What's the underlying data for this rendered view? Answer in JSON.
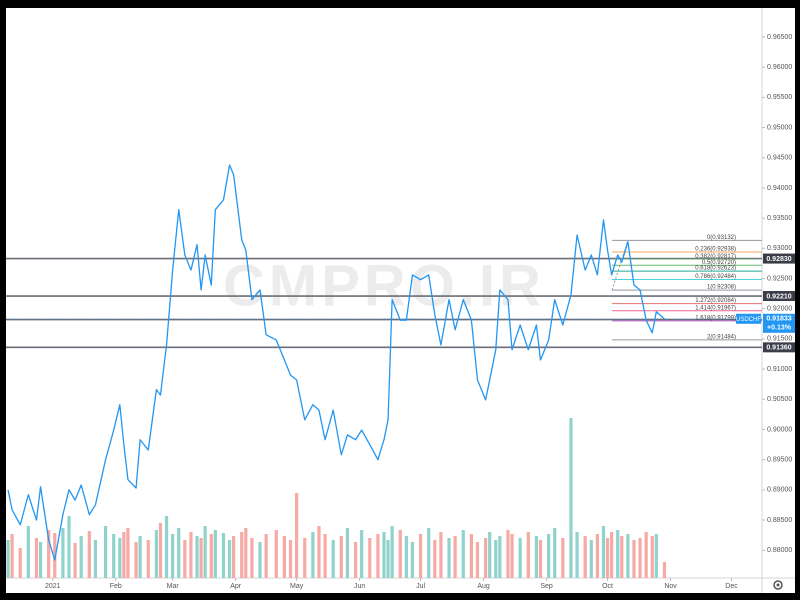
{
  "chart_data": {
    "type": "line",
    "watermark": "CMPRO.IR",
    "x": [
      -22,
      -20,
      -16,
      -12,
      -8,
      -6,
      -2,
      1,
      5,
      8,
      11,
      14,
      18,
      21,
      26,
      30,
      33,
      35,
      37,
      41,
      43,
      47,
      51,
      53,
      56,
      59,
      62,
      65,
      68,
      71,
      73,
      75,
      78,
      80,
      84,
      87,
      89,
      93,
      95,
      98,
      102,
      105,
      110,
      114,
      117,
      120,
      124,
      128,
      131,
      134,
      138,
      142,
      145,
      149,
      152,
      156,
      160,
      163,
      165,
      167,
      171,
      174,
      177,
      181,
      185,
      188,
      191,
      195,
      198,
      202,
      206,
      209,
      213,
      215,
      218,
      220,
      224,
      226,
      230,
      234,
      238,
      240,
      244,
      247,
      251,
      255,
      258,
      262,
      265,
      268,
      271,
      273,
      275,
      278,
      280,
      283,
      286,
      289,
      292,
      295,
      297,
      301
    ],
    "xlim": [
      -23,
      349
    ],
    "xticks": [
      {
        "value": 0,
        "label": "2021"
      },
      {
        "value": 31,
        "label": "Feb"
      },
      {
        "value": 59,
        "label": "Mar"
      },
      {
        "value": 90,
        "label": "Apr"
      },
      {
        "value": 120,
        "label": "May"
      },
      {
        "value": 151,
        "label": "Jun"
      },
      {
        "value": 181,
        "label": "Jul"
      },
      {
        "value": 212,
        "label": "Aug"
      },
      {
        "value": 243,
        "label": "Sep"
      },
      {
        "value": 273,
        "label": "Oct"
      },
      {
        "value": 304,
        "label": "Nov"
      },
      {
        "value": 334,
        "label": "Dec"
      }
    ],
    "ylim": [
      0.8754,
      0.9698
    ],
    "yticks": [
      {
        "value": 0.88,
        "label": "0.88000"
      },
      {
        "value": 0.885,
        "label": "0.88500"
      },
      {
        "value": 0.89,
        "label": "0.89000"
      },
      {
        "value": 0.895,
        "label": "0.89500"
      },
      {
        "value": 0.9,
        "label": "0.90000"
      },
      {
        "value": 0.905,
        "label": "0.90500"
      },
      {
        "value": 0.91,
        "label": "0.91000"
      },
      {
        "value": 0.915,
        "label": "0.91500"
      },
      {
        "value": 0.92,
        "label": "0.92000"
      },
      {
        "value": 0.925,
        "label": "0.92500"
      },
      {
        "value": 0.93,
        "label": "0.93000"
      },
      {
        "value": 0.935,
        "label": "0.93500"
      },
      {
        "value": 0.94,
        "label": "0.94000"
      },
      {
        "value": 0.945,
        "label": "0.94500"
      },
      {
        "value": 0.95,
        "label": "0.95000"
      },
      {
        "value": 0.955,
        "label": "0.95500"
      },
      {
        "value": 0.96,
        "label": "0.96000"
      },
      {
        "value": 0.965,
        "label": "0.96500"
      }
    ],
    "grid": false,
    "series": [
      {
        "name": "USDCHF",
        "color": "#2196f3",
        "values": [
          0.89,
          0.8867,
          0.8842,
          0.8892,
          0.885,
          0.8905,
          0.8817,
          0.8784,
          0.8859,
          0.89,
          0.8883,
          0.8908,
          0.8859,
          0.8875,
          0.895,
          0.8999,
          0.9041,
          0.8975,
          0.8917,
          0.8903,
          0.8983,
          0.8966,
          0.9066,
          0.9057,
          0.914,
          0.9264,
          0.9364,
          0.9289,
          0.9264,
          0.9306,
          0.9231,
          0.9289,
          0.9239,
          0.9364,
          0.938,
          0.9438,
          0.9422,
          0.9314,
          0.9297,
          0.9215,
          0.9231,
          0.9157,
          0.9148,
          0.9115,
          0.909,
          0.9082,
          0.9016,
          0.9041,
          0.9032,
          0.8983,
          0.9032,
          0.8958,
          0.8991,
          0.8983,
          0.8999,
          0.8975,
          0.895,
          0.8983,
          0.9016,
          0.9215,
          0.9181,
          0.9181,
          0.9256,
          0.9248,
          0.9256,
          0.919,
          0.914,
          0.9215,
          0.9165,
          0.9215,
          0.9181,
          0.9082,
          0.9049,
          0.9082,
          0.9132,
          0.9231,
          0.9215,
          0.9132,
          0.9173,
          0.9132,
          0.9173,
          0.9115,
          0.9148,
          0.9215,
          0.9173,
          0.9223,
          0.9322,
          0.9264,
          0.9289,
          0.9256,
          0.9347,
          0.9297,
          0.9256,
          0.9289,
          0.9277,
          0.9311,
          0.9239,
          0.9231,
          0.9181,
          0.916,
          0.9195,
          0.9183
        ]
      }
    ],
    "volume": {
      "axis": "y2",
      "up_color": "#8fd3cc",
      "down_color": "#f6a9a5",
      "values": [
        38,
        44,
        30,
        52,
        40,
        36,
        48,
        45,
        50,
        62,
        35,
        42,
        47,
        38,
        52,
        44,
        40,
        46,
        50,
        36,
        42,
        38,
        48,
        55,
        62,
        44,
        50,
        38,
        46,
        42,
        40,
        52,
        44,
        48,
        45,
        38,
        42,
        46,
        50,
        40,
        36,
        44,
        48,
        42,
        38,
        85,
        40,
        46,
        52,
        44,
        38,
        42,
        50,
        36,
        48,
        40,
        44,
        46,
        38,
        52,
        48,
        42,
        36,
        44,
        50,
        38,
        46,
        40,
        42,
        48,
        44,
        36,
        40,
        46,
        38,
        42,
        48,
        44,
        40,
        46,
        42,
        38,
        44,
        50,
        40,
        160,
        46,
        42,
        38,
        44,
        52,
        40,
        46,
        48,
        42,
        44,
        38,
        40,
        46,
        42,
        44,
        16
      ]
    },
    "y2lim": [
      0,
      570
    ],
    "levels": [
      {
        "value": 0.9283,
        "label": "0.92830"
      },
      {
        "value": 0.9221,
        "label": "0.92210"
      },
      {
        "value": 0.9182,
        "label": "0.91820"
      },
      {
        "value": 0.9136,
        "label": "0.91360"
      }
    ],
    "last_price": {
      "value": 0.91833,
      "label": "0.91833"
    },
    "change": {
      "value": 0.13,
      "label": "+0.13%"
    },
    "fib": [
      {
        "value": 0.93132,
        "label": "0(0.93132)",
        "color": "#9598a1"
      },
      {
        "value": 0.92938,
        "label": "0.236(0.92938)",
        "color": "#f7a35c"
      },
      {
        "value": 0.92817,
        "label": "0.382(0.92817)",
        "color": "#a5d6a7"
      },
      {
        "value": 0.9272,
        "label": "0.5(0.92720)",
        "color": "#66bb6a"
      },
      {
        "value": 0.92623,
        "label": "0.618(0.92623)",
        "color": "#26a69a"
      },
      {
        "value": 0.92484,
        "label": "0.786(0.92484)",
        "color": "#4dd0e1"
      },
      {
        "value": 0.92308,
        "label": "1(0.92308)",
        "color": "#9598a1"
      },
      {
        "value": 0.92084,
        "label": "1.272(0.92084)",
        "color": "#e57373"
      },
      {
        "value": 0.91967,
        "label": "1.414(0.91967)",
        "color": "#f06292"
      },
      {
        "value": 0.91799,
        "label": "1.618(0.91799)",
        "color": "#ba68c8"
      },
      {
        "value": 0.91484,
        "label": "2(0.91484)",
        "color": "#9598a1"
      }
    ]
  }
}
